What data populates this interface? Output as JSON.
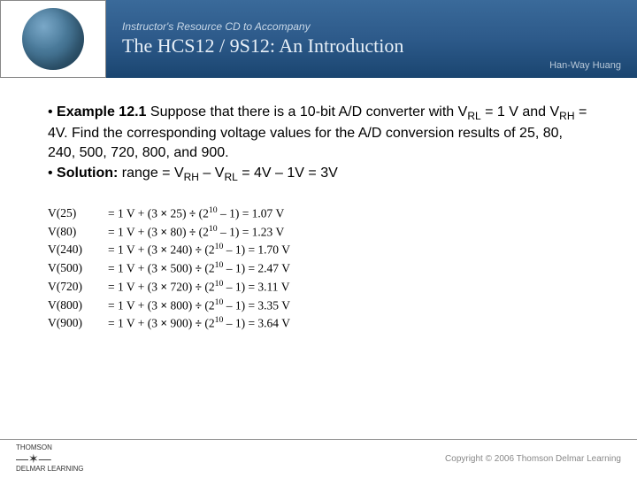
{
  "header": {
    "subtitle": "Instructor's Resource CD to Accompany",
    "title": "The HCS12 / 9S12: An Introduction",
    "author": "Han-Way Huang"
  },
  "problem": {
    "example_label": "Example 12.1",
    "text1": " Suppose that there is a 10-bit A/D converter with V",
    "sub1": "RL",
    "text2": " = 1 V and V",
    "sub2": "RH",
    "text3": " = 4V. Find the corresponding voltage values for the A/D conversion results of 25, 80, 240, 500, 720, 800, and 900.",
    "solution_label": "Solution:",
    "solution_text1": " range = V",
    "sol_sub1": "RH",
    "solution_text2": " – V",
    "sol_sub2": "RL",
    "solution_text3": " = 4V – 1V = 3V"
  },
  "calculations": [
    {
      "label": "V(25)",
      "prefix": "= 1 V + (3 ",
      "mul": "×",
      "mid1": " 25) ",
      "div": "÷",
      "mid2": " (2",
      "exp": "10",
      "suffix": " – 1) = 1.07 V"
    },
    {
      "label": "V(80)",
      "prefix": "= 1 V + (3 ",
      "mul": "×",
      "mid1": " 80) ",
      "div": "÷",
      "mid2": " (2",
      "exp": "10",
      "suffix": " – 1) = 1.23 V"
    },
    {
      "label": "V(240)",
      "prefix": "= 1 V + (3 ",
      "mul": "×",
      "mid1": " 240) ",
      "div": "÷",
      "mid2": " (2",
      "exp": "10",
      "suffix": " – 1) = 1.70 V"
    },
    {
      "label": "V(500)",
      "prefix": "= 1 V + (3 ",
      "mul": "×",
      "mid1": " 500) ",
      "div": "÷",
      "mid2": " (2",
      "exp": "10",
      "suffix": " – 1) = 2.47 V"
    },
    {
      "label": "V(720)",
      "prefix": "= 1 V + (3 ",
      "mul": "×",
      "mid1": " 720) ",
      "div": "÷",
      "mid2": " (2",
      "exp": "10",
      "suffix": " – 1) = 3.11 V"
    },
    {
      "label": "V(800)",
      "prefix": "= 1 V + (3 ",
      "mul": "×",
      "mid1": " 800) ",
      "div": "÷",
      "mid2": " (2",
      "exp": "10",
      "suffix": " – 1) = 3.35 V"
    },
    {
      "label": "V(900)",
      "prefix": "= 1 V + (3 ",
      "mul": "×",
      "mid1": " 900) ",
      "div": "÷",
      "mid2": " (2",
      "exp": "10",
      "suffix": " – 1) = 3.64 V"
    }
  ],
  "footer": {
    "brand1": "THOMSON",
    "brand2": "DELMAR LEARNING",
    "copyright": "Copyright © 2006 Thomson Delmar Learning"
  }
}
